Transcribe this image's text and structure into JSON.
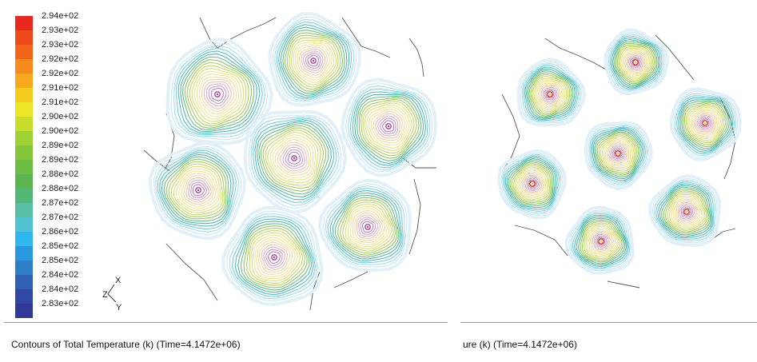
{
  "chart_data": [
    {
      "type": "contour",
      "legend": {
        "labels": [
          "2.94e+02",
          "2.93e+02",
          "2.93e+02",
          "2.92e+02",
          "2.92e+02",
          "2.91e+02",
          "2.91e+02",
          "2.90e+02",
          "2.90e+02",
          "2.89e+02",
          "2.89e+02",
          "2.88e+02",
          "2.88e+02",
          "2.87e+02",
          "2.87e+02",
          "2.86e+02",
          "2.85e+02",
          "2.85e+02",
          "2.84e+02",
          "2.84e+02",
          "2.83e+02"
        ],
        "colors": [
          "#e8281e",
          "#ee4a1c",
          "#f2641a",
          "#f58a1d",
          "#f6a81e",
          "#f4cc1e",
          "#ece624",
          "#c8dc2c",
          "#9ed134",
          "#86c63b",
          "#6cbd44",
          "#5bb44e",
          "#55b776",
          "#58bfa2",
          "#52c3d2",
          "#2eb8ee",
          "#2a98de",
          "#2f7ec8",
          "#2f60b4",
          "#3048a4",
          "#2e3a96"
        ]
      },
      "axes_triad": {
        "x": "X",
        "y": "Y",
        "z": "Z"
      },
      "caption": "Contours of Total Temperature (k)  (Time=4.1472e+06)"
    },
    {
      "type": "contour",
      "caption": "ure (k)  (Time=4.1472e+06)"
    }
  ]
}
